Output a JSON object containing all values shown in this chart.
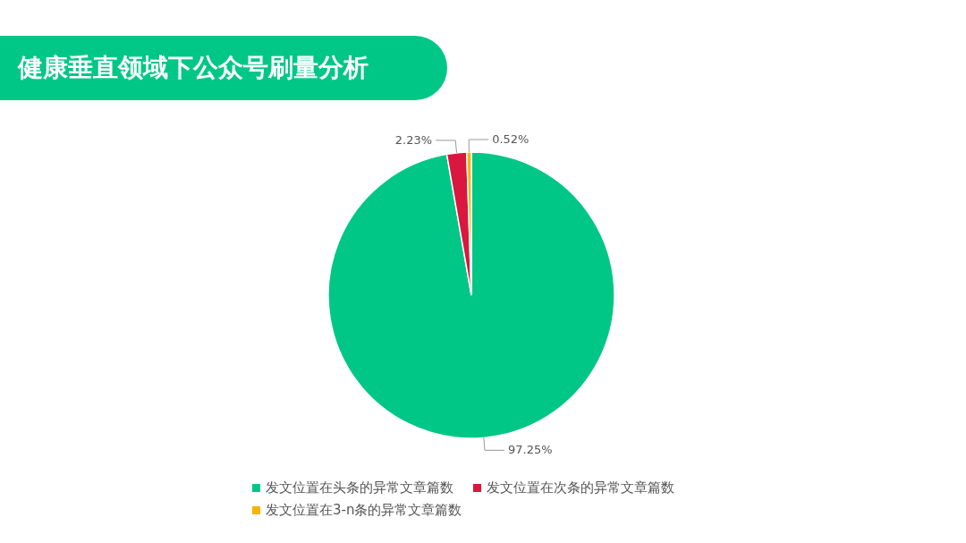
{
  "chart_data": {
    "type": "pie",
    "title": "健康垂直领域下公众号刷量分析",
    "categories": [
      "发文位置在头条的异常文章篇数",
      "发文位置在次条的异常文章篇数",
      "发文位置在3-n条的异常文章篇数"
    ],
    "values": [
      97.25,
      2.23,
      0.52
    ],
    "colors": [
      "#00c785",
      "#d9173f",
      "#f5b400"
    ],
    "value_labels": [
      "97.25%",
      "2.23%",
      "0.52%"
    ],
    "legend": "bottom"
  }
}
